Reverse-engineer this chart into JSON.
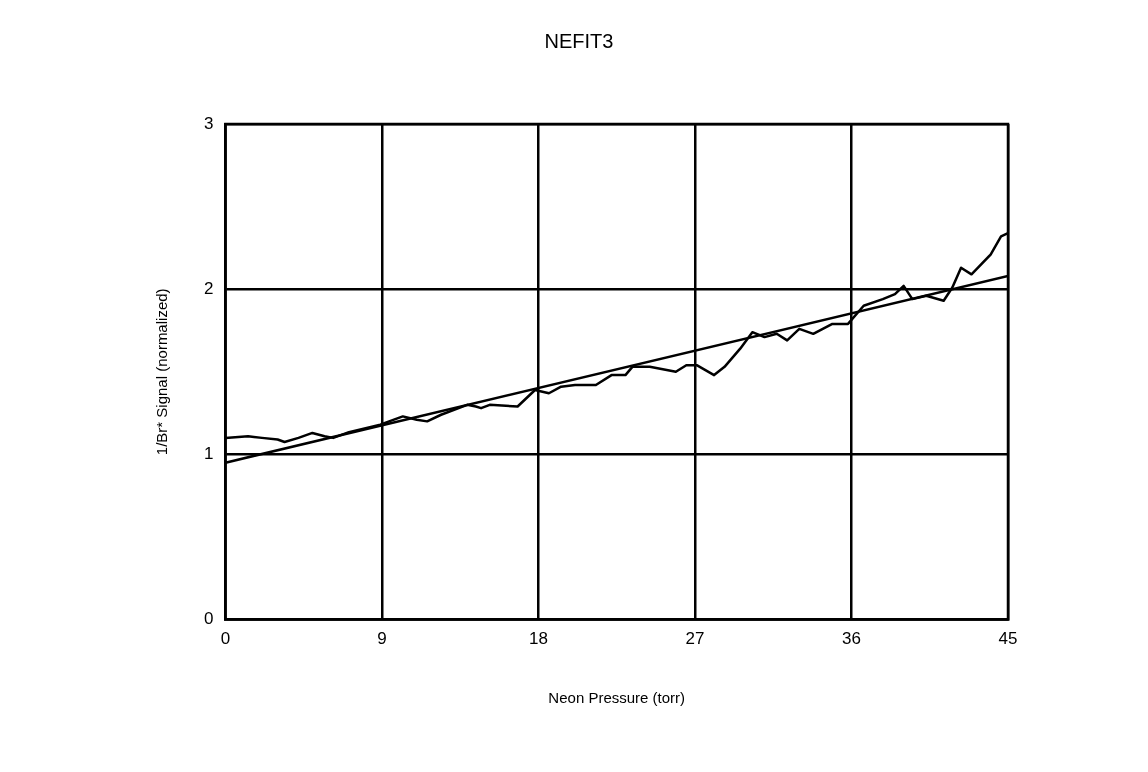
{
  "chart_data": {
    "type": "line",
    "title": "NEFIT3",
    "xlabel": "Neon Pressure (torr)",
    "ylabel": "1/Br* Signal (normalized)",
    "xlim": [
      0,
      45
    ],
    "xticks": [
      0,
      9,
      18,
      27,
      36,
      45
    ],
    "ylim": [
      0,
      3
    ],
    "yticks": [
      0,
      1,
      2,
      3
    ],
    "grid": true,
    "legend": false,
    "marker": "none",
    "line_style": "solid",
    "series": [
      {
        "color": "#000000",
        "x": [
          0,
          1.3,
          2.1,
          3.0,
          3.4,
          4.2,
          5.0,
          5.7,
          6.2,
          7.1,
          8.9,
          10.2,
          11.0,
          11.6,
          12.4,
          13.9,
          14.4,
          14.7,
          15.2,
          16.8,
          17.8,
          18.6,
          19.3,
          20.1,
          21.3,
          22.2,
          23.0,
          23.4,
          24.4,
          25.9,
          26.5,
          27.1,
          28.1,
          28.7,
          29.6,
          30.3,
          31.0,
          31.7,
          32.3,
          33.0,
          33.8,
          34.9,
          35.8,
          36.7,
          37.8,
          38.5,
          39.0,
          39.5,
          40.3,
          41.3,
          41.8,
          42.3,
          42.9,
          44.0,
          44.6,
          45
        ],
        "values": [
          1.1,
          1.11,
          1.1,
          1.09,
          1.075,
          1.1,
          1.13,
          1.11,
          1.1,
          1.135,
          1.18,
          1.23,
          1.21,
          1.2,
          1.24,
          1.3,
          1.29,
          1.28,
          1.3,
          1.29,
          1.39,
          1.37,
          1.41,
          1.42,
          1.42,
          1.48,
          1.48,
          1.53,
          1.53,
          1.5,
          1.54,
          1.54,
          1.48,
          1.53,
          1.64,
          1.74,
          1.71,
          1.73,
          1.69,
          1.76,
          1.73,
          1.79,
          1.79,
          1.9,
          1.94,
          1.97,
          2.02,
          1.94,
          1.96,
          1.93,
          2.01,
          2.13,
          2.09,
          2.21,
          2.32,
          2.34
        ]
      },
      {
        "color": "#000000",
        "x": [
          0,
          45
        ],
        "values": [
          0.95,
          2.08
        ]
      }
    ]
  }
}
